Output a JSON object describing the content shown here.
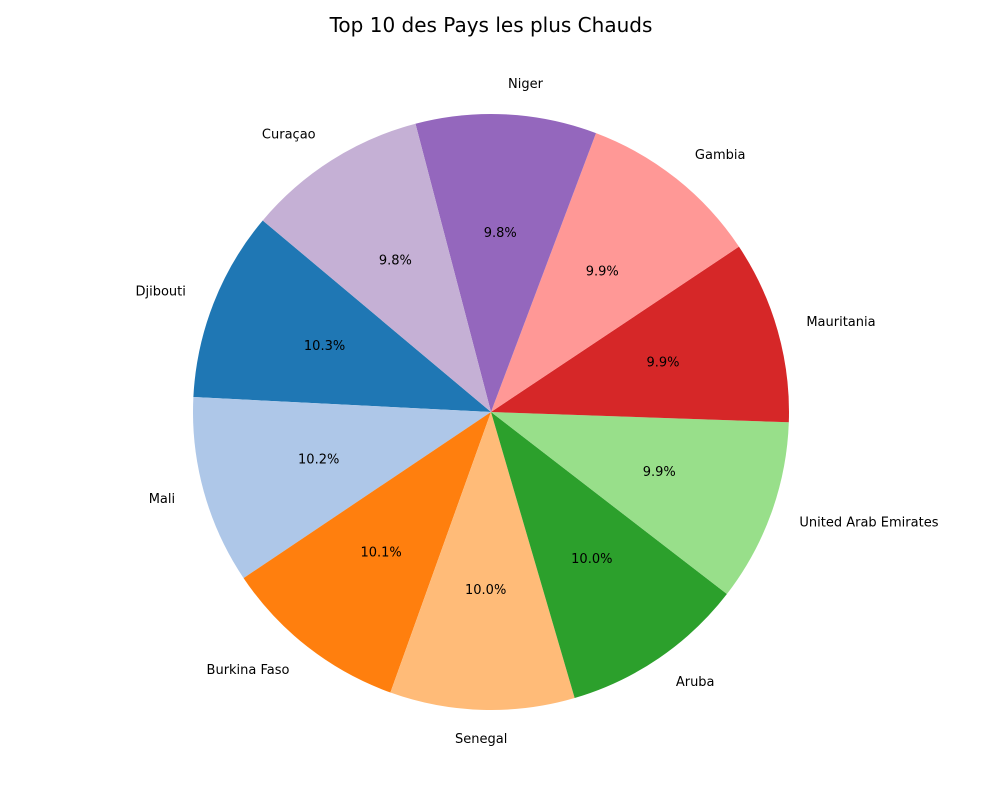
{
  "chart_data": {
    "type": "pie",
    "title": "Top 10 des Pays les plus Chauds",
    "start_angle_deg": 140,
    "direction": "counterclockwise",
    "slices": [
      {
        "label": "Djibouti",
        "percent": 10.3,
        "percent_label": "10.3%",
        "color": "#1f77b4"
      },
      {
        "label": "Mali",
        "percent": 10.2,
        "percent_label": "10.2%",
        "color": "#aec7e8"
      },
      {
        "label": "Burkina Faso",
        "percent": 10.1,
        "percent_label": "10.1%",
        "color": "#ff7f0e"
      },
      {
        "label": "Senegal",
        "percent": 10.0,
        "percent_label": "10.0%",
        "color": "#ffbb78"
      },
      {
        "label": "Aruba",
        "percent": 10.0,
        "percent_label": "10.0%",
        "color": "#2ca02c"
      },
      {
        "label": "United Arab Emirates",
        "percent": 9.9,
        "percent_label": "9.9%",
        "color": "#98df8a"
      },
      {
        "label": "Mauritania",
        "percent": 9.9,
        "percent_label": "9.9%",
        "color": "#d62728"
      },
      {
        "label": "Gambia",
        "percent": 9.9,
        "percent_label": "9.9%",
        "color": "#ff9896"
      },
      {
        "label": "Niger",
        "percent": 9.8,
        "percent_label": "9.8%",
        "color": "#9467bd"
      },
      {
        "label": "Curaçao",
        "percent": 9.8,
        "percent_label": "9.8%",
        "color": "#c5b0d5"
      }
    ]
  }
}
